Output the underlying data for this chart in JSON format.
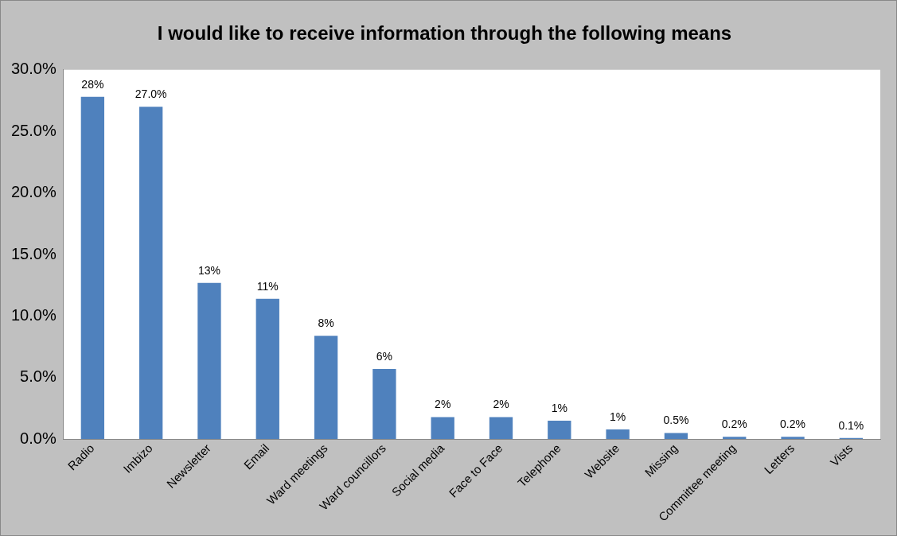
{
  "chart_data": {
    "type": "bar",
    "title": "I would like to receive information through the following means",
    "categories": [
      "Radio",
      "Imbizo",
      "Newsletter",
      "Email",
      "Ward meetings",
      "Ward councillors",
      "Social media",
      "Face to Face",
      "Telephone",
      "Website",
      "Missing",
      "Committee meeting",
      "Letters",
      "Vists"
    ],
    "values": [
      27.8,
      27.0,
      12.7,
      11.4,
      8.4,
      5.7,
      1.8,
      1.8,
      1.5,
      0.8,
      0.5,
      0.2,
      0.2,
      0.1
    ],
    "value_labels": [
      "28%",
      "27.0%",
      "13%",
      "11%",
      "8%",
      "6%",
      "2%",
      "2%",
      "1%",
      "1%",
      "0.5%",
      "0.2%",
      "0.2%",
      "0.1%"
    ],
    "color": "#4f81bd",
    "ylim": [
      0,
      30
    ],
    "yticks": [
      {
        "value": 0,
        "label": "0.0%"
      },
      {
        "value": 5,
        "label": "5.0%"
      },
      {
        "value": 10,
        "label": "10.0%"
      },
      {
        "value": 15,
        "label": "15.0%"
      },
      {
        "value": 20,
        "label": "20.0%"
      },
      {
        "value": 25,
        "label": "25.0%"
      },
      {
        "value": 30,
        "label": "30.0%"
      }
    ],
    "grid": false,
    "legend": false
  }
}
